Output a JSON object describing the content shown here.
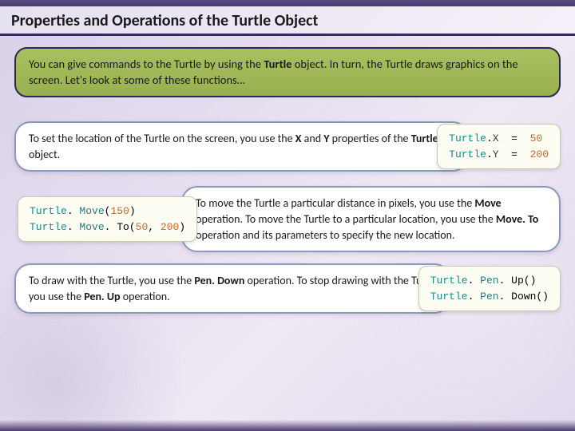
{
  "title": "Properties and Operations of the Turtle Object",
  "intro": {
    "pre": "You can give commands to the Turtle by using the ",
    "b1": "Turtle",
    "post": " object. In turn, the Turtle draws graphics on the screen. Let's look at some of these functions…"
  },
  "box1": {
    "pre": "To set the location of the Turtle on the screen, you use the ",
    "b1": "X",
    "mid1": " and ",
    "b2": "Y",
    "mid2": " properties of the ",
    "b3": "Turtle",
    "post": " object."
  },
  "code1": {
    "obj": "Turtle",
    "dot": ".",
    "prop1": "X",
    "eq": "  =  ",
    "val1": "50",
    "prop2": "Y",
    "val2": "200",
    "colors": {
      "obj": "#1a8a8a",
      "prop": "#3a3a3a",
      "num": "#c06a2a"
    }
  },
  "code2": {
    "obj": "Turtle",
    "dot": ". ",
    "m1": "Move",
    "a1o": "(",
    "a1v": "150",
    "a1c": ")",
    "m2": "Move",
    "a2o": ". To(",
    "a2v1": "50",
    "a2s": ", ",
    "a2v2": "200",
    "a2c": ")"
  },
  "box2": {
    "pre": "To move the Turtle a particular distance in pixels, you use the ",
    "b1": "Move",
    "mid1": " operation. To move the Turtle to a particular location, you use the ",
    "b2": "Move. To",
    "post": " operation and its parameters to specify the new location."
  },
  "box3": {
    "pre": "To draw with the Turtle, you use the ",
    "b1": "Pen. Down",
    "mid1": " operation. To stop drawing with the Turtle, you use the ",
    "b2": "Pen. Up",
    "post": " operation."
  },
  "code3": {
    "obj": "Turtle",
    "dot": ". ",
    "m1": "Pen",
    "s1": ". Up()",
    "m2": "Pen",
    "s2": ". Down()"
  },
  "style": {
    "title_fontsize": 20,
    "body_fontsize": 14,
    "code_fontsize": 13,
    "accent_green": "#a0b858",
    "border_dark": "#2a2a4a",
    "pill_border": "#8a9ab8",
    "bg_gradient": [
      "#d8d0e8",
      "#f0e8f4"
    ],
    "code_bg": "#fdfdf4"
  }
}
